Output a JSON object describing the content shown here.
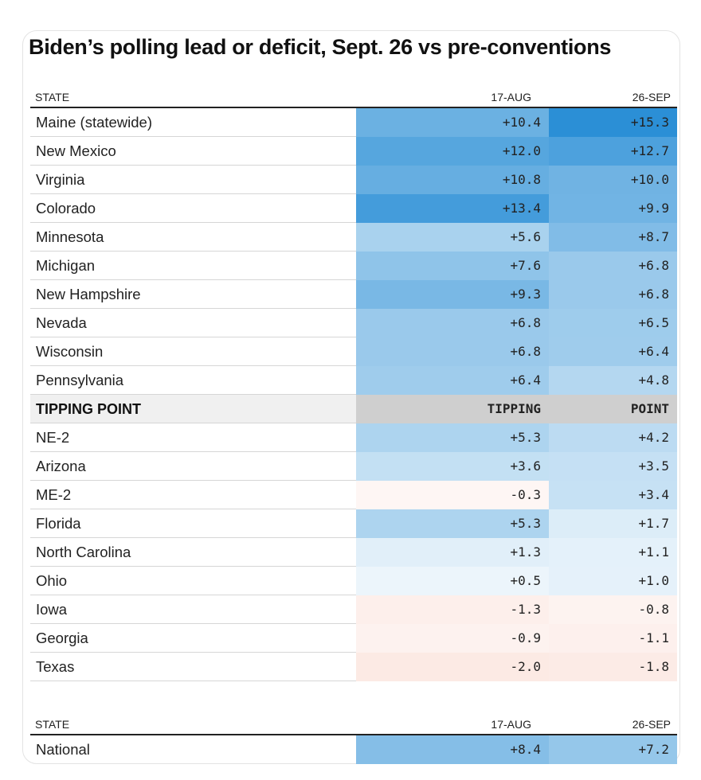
{
  "chart_data": {
    "type": "table",
    "title": "Biden’s polling lead or deficit, Sept. 26 vs pre-conventions",
    "columns": [
      "STATE",
      "17-AUG",
      "26-SEP"
    ],
    "rows": [
      {
        "state": "Maine (statewide)",
        "aug": "+10.4",
        "sep": "+15.3"
      },
      {
        "state": "New Mexico",
        "aug": "+12.0",
        "sep": "+12.7"
      },
      {
        "state": "Virginia",
        "aug": "+10.8",
        "sep": "+10.0"
      },
      {
        "state": "Colorado",
        "aug": "+13.4",
        "sep": "+9.9"
      },
      {
        "state": "Minnesota",
        "aug": "+5.6",
        "sep": "+8.7"
      },
      {
        "state": "Michigan",
        "aug": "+7.6",
        "sep": "+6.8"
      },
      {
        "state": "New Hampshire",
        "aug": "+9.3",
        "sep": "+6.8"
      },
      {
        "state": "Nevada",
        "aug": "+6.8",
        "sep": "+6.5"
      },
      {
        "state": "Wisconsin",
        "aug": "+6.8",
        "sep": "+6.4"
      },
      {
        "state": "Pennsylvania",
        "aug": "+6.4",
        "sep": "+4.8"
      },
      {
        "state": "TIPPING POINT",
        "aug": "TIPPING",
        "sep": "POINT",
        "divider": true
      },
      {
        "state": "NE-2",
        "aug": "+5.3",
        "sep": "+4.2"
      },
      {
        "state": "Arizona",
        "aug": "+3.6",
        "sep": "+3.5"
      },
      {
        "state": "ME-2",
        "aug": "-0.3",
        "sep": "+3.4"
      },
      {
        "state": "Florida",
        "aug": "+5.3",
        "sep": "+1.7"
      },
      {
        "state": "North Carolina",
        "aug": "+1.3",
        "sep": "+1.1"
      },
      {
        "state": "Ohio",
        "aug": "+0.5",
        "sep": "+1.0"
      },
      {
        "state": "Iowa",
        "aug": "-1.3",
        "sep": "-0.8"
      },
      {
        "state": "Georgia",
        "aug": "-0.9",
        "sep": "-1.1"
      },
      {
        "state": "Texas",
        "aug": "-2.0",
        "sep": "-1.8"
      }
    ],
    "national": {
      "columns": [
        "STATE",
        "17-AUG",
        "26-SEP"
      ],
      "state": "National",
      "aug": "+8.4",
      "sep": "+7.2"
    },
    "color_scale": {
      "positive": "#2b8fd6",
      "negative": "#f08a6e",
      "neutral": "#ffffff",
      "max_abs": 15.3
    }
  }
}
